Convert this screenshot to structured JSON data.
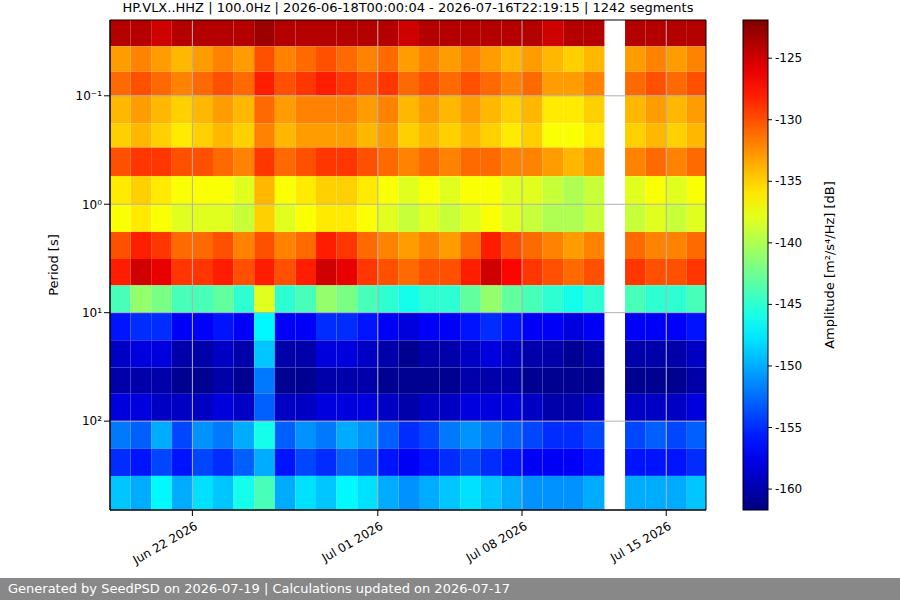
{
  "chart_data": {
    "type": "heatmap",
    "title": "HP.VLX..HHZ | 100.0Hz | 2026-06-18T00:00:04 - 2026-07-16T22:19:15 | 1242 segments",
    "footer": "Generated by SeedPSD on 2026-07-19 | Calculations updated on 2026-07-17",
    "y_label": "Period [s]",
    "log": "y",
    "grid": true,
    "xlim": [
      "2026-06-18T00:00:04",
      "2026-07-16T22:19:15"
    ],
    "xticks": [
      {
        "value": "2026-06-22",
        "label": "Jun 22 2026"
      },
      {
        "value": "2026-07-01",
        "label": "Jul 01 2026"
      },
      {
        "value": "2026-07-08",
        "label": "Jul 08 2026"
      },
      {
        "value": "2026-07-15",
        "label": "Jul 15 2026"
      }
    ],
    "ylim": [
      0.02,
      660
    ],
    "yticks": [
      {
        "value": 0.1,
        "label": "10⁻¹"
      },
      {
        "value": 1,
        "label": "10⁰"
      },
      {
        "value": 10,
        "label": "10¹"
      },
      {
        "value": 100,
        "label": "10²"
      }
    ],
    "x_bins": [
      "2026-06-18",
      "2026-06-19",
      "2026-06-20",
      "2026-06-21",
      "2026-06-22",
      "2026-06-23",
      "2026-06-24",
      "2026-06-25",
      "2026-06-26",
      "2026-06-27",
      "2026-06-28",
      "2026-06-29",
      "2026-06-30",
      "2026-07-01",
      "2026-07-02",
      "2026-07-03",
      "2026-07-04",
      "2026-07-05",
      "2026-07-06",
      "2026-07-07",
      "2026-07-08",
      "2026-07-09",
      "2026-07-10",
      "2026-07-11",
      "2026-07-12",
      "2026-07-13",
      "2026-07-14",
      "2026-07-15",
      "2026-07-16",
      "2026-07-17"
    ],
    "y_bins": [
      0.02,
      0.035,
      0.06,
      0.1,
      0.18,
      0.3,
      0.55,
      1,
      1.8,
      3.2,
      5.6,
      10,
      18,
      32,
      56,
      100,
      180,
      320,
      660
    ],
    "values": [
      [
        -124,
        -124,
        -125,
        -124,
        -124,
        -124,
        -124,
        -123,
        -124,
        -124,
        -124,
        -124,
        -124,
        -124,
        -125,
        -124,
        -124,
        -124,
        -124,
        -124,
        -124,
        -125,
        -124,
        -124,
        null,
        -124,
        -124,
        -124,
        -124
      ],
      [
        -133,
        -132,
        -133,
        -134,
        -133,
        -132,
        -133,
        -130,
        -132,
        -131,
        -130,
        -131,
        -132,
        -131,
        -133,
        -132,
        -133,
        -132,
        -133,
        -134,
        -133,
        -134,
        -135,
        -134,
        null,
        -133,
        -132,
        -133,
        -132
      ],
      [
        -131,
        -130,
        -131,
        -132,
        -131,
        -130,
        -131,
        -128,
        -130,
        -129,
        -128,
        -129,
        -130,
        -129,
        -131,
        -130,
        -131,
        -130,
        -131,
        -132,
        -131,
        -133,
        -133,
        -132,
        null,
        -131,
        -130,
        -131,
        -130
      ],
      [
        -134,
        -133,
        -134,
        -135,
        -134,
        -133,
        -134,
        -131,
        -133,
        -132,
        -132,
        -132,
        -133,
        -132,
        -134,
        -133,
        -134,
        -133,
        -134,
        -135,
        -134,
        -136,
        -136,
        -135,
        null,
        -134,
        -133,
        -134,
        -133
      ],
      [
        -135,
        -134,
        -135,
        -136,
        -135,
        -134,
        -135,
        -132,
        -134,
        -133,
        -133,
        -133,
        -134,
        -133,
        -135,
        -134,
        -135,
        -134,
        -135,
        -136,
        -135,
        -137,
        -137,
        -136,
        null,
        -135,
        -134,
        -135,
        -134
      ],
      [
        -130,
        -129,
        -129,
        -130,
        -130,
        -131,
        -132,
        -129,
        -131,
        -130,
        -129,
        -129,
        -130,
        -131,
        -132,
        -131,
        -132,
        -131,
        -131,
        -132,
        -132,
        -133,
        -134,
        -133,
        null,
        -132,
        -131,
        -132,
        -131
      ],
      [
        -136,
        -135,
        -136,
        -137,
        -137,
        -137,
        -138,
        -134,
        -137,
        -136,
        -135,
        -135,
        -136,
        -137,
        -138,
        -137,
        -138,
        -137,
        -137,
        -138,
        -138,
        -139,
        -140,
        -139,
        null,
        -138,
        -137,
        -138,
        -137
      ],
      [
        -137,
        -136,
        -137,
        -138,
        -138,
        -138,
        -139,
        -135,
        -138,
        -137,
        -136,
        -136,
        -137,
        -138,
        -139,
        -138,
        -139,
        -138,
        -137,
        -138,
        -139,
        -140,
        -140,
        -139,
        null,
        -139,
        -138,
        -139,
        -138
      ],
      [
        -130,
        -128,
        -129,
        -131,
        -131,
        -130,
        -132,
        -130,
        -132,
        -131,
        -128,
        -129,
        -131,
        -132,
        -133,
        -132,
        -133,
        -131,
        -128,
        -130,
        -131,
        -132,
        -133,
        -132,
        null,
        -131,
        -132,
        -132,
        -131
      ],
      [
        -128,
        -125,
        -126,
        -129,
        -129,
        -128,
        -130,
        -128,
        -130,
        -128,
        -125,
        -126,
        -129,
        -130,
        -131,
        -130,
        -130,
        -128,
        -125,
        -127,
        -129,
        -130,
        -131,
        -130,
        null,
        -129,
        -130,
        -130,
        -129
      ],
      [
        -144,
        -141,
        -142,
        -144,
        -144,
        -143,
        -145,
        -138,
        -145,
        -144,
        -141,
        -142,
        -144,
        -145,
        -146,
        -145,
        -145,
        -143,
        -141,
        -143,
        -144,
        -145,
        -146,
        -145,
        null,
        -144,
        -145,
        -145,
        -144
      ],
      [
        -156,
        -155,
        -155,
        -157,
        -157,
        -156,
        -157,
        -147,
        -157,
        -157,
        -155,
        -155,
        -156,
        -157,
        -158,
        -157,
        -157,
        -156,
        -155,
        -156,
        -157,
        -157,
        -158,
        -157,
        null,
        -157,
        -157,
        -157,
        -156
      ],
      [
        -159,
        -158,
        -158,
        -160,
        -160,
        -159,
        -160,
        -149,
        -160,
        -160,
        -158,
        -158,
        -159,
        -160,
        -161,
        -160,
        -160,
        -159,
        -158,
        -159,
        -160,
        -160,
        -161,
        -160,
        null,
        -160,
        -160,
        -160,
        -159
      ],
      [
        -160,
        -160,
        -160,
        -161,
        -161,
        -160,
        -161,
        -152,
        -161,
        -161,
        -160,
        -160,
        -160,
        -161,
        -161,
        -161,
        -161,
        -160,
        -160,
        -160,
        -161,
        -161,
        -161,
        -161,
        null,
        -161,
        -161,
        -161,
        -160
      ],
      [
        -158,
        -158,
        -159,
        -159,
        -159,
        -158,
        -159,
        -153,
        -159,
        -159,
        -158,
        -158,
        -158,
        -159,
        -160,
        -159,
        -159,
        -158,
        -158,
        -158,
        -159,
        -160,
        -160,
        -159,
        null,
        -159,
        -159,
        -159,
        -158
      ],
      [
        -152,
        -153,
        -150,
        -154,
        -151,
        -152,
        -150,
        -146,
        -153,
        -151,
        -152,
        -150,
        -151,
        -153,
        -155,
        -154,
        -152,
        -151,
        -152,
        -153,
        -154,
        -155,
        -155,
        -154,
        null,
        -154,
        -153,
        -154,
        -153
      ],
      [
        -155,
        -156,
        -154,
        -156,
        -154,
        -155,
        -153,
        -150,
        -156,
        -154,
        -155,
        -153,
        -154,
        -156,
        -157,
        -156,
        -155,
        -154,
        -155,
        -156,
        -157,
        -157,
        -157,
        -156,
        null,
        -156,
        -156,
        -156,
        -155
      ],
      [
        -149,
        -150,
        -147,
        -150,
        -148,
        -149,
        -146,
        -144,
        -150,
        -148,
        -149,
        -147,
        -148,
        -150,
        -151,
        -150,
        -149,
        -148,
        -149,
        -150,
        -151,
        -151,
        -151,
        -150,
        null,
        -150,
        -150,
        -150,
        -149
      ]
    ],
    "colorbar": {
      "label": "Amplitude [m²/s⁴/Hz] [dB]",
      "range": [
        -161.7,
        -121.9
      ],
      "ticks": [
        -125,
        -130,
        -135,
        -140,
        -145,
        -150,
        -155,
        -160
      ]
    }
  }
}
